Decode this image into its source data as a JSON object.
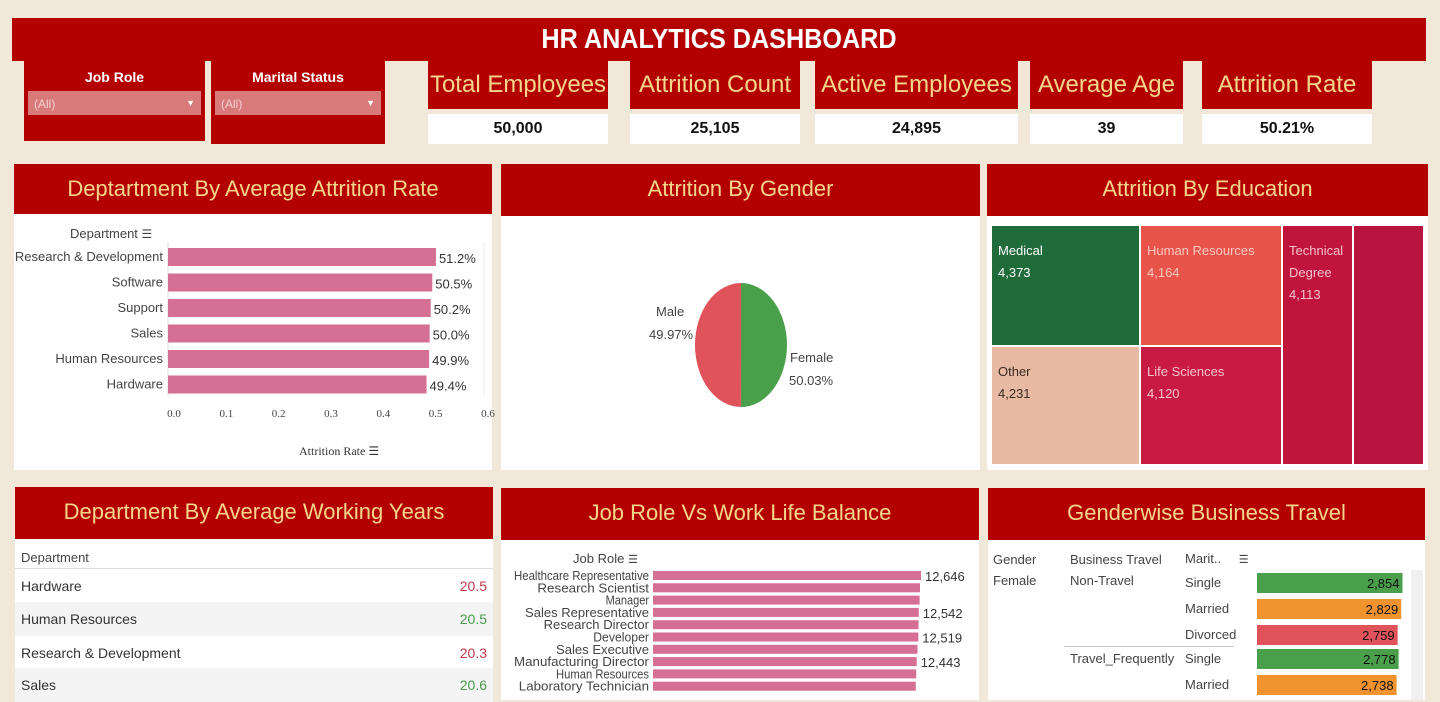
{
  "header": {
    "title": "HR ANALYTICS DASHBOARD"
  },
  "filters": [
    {
      "label": "Job Role",
      "value": "(All)"
    },
    {
      "label": "Marital Status",
      "value": "(All)"
    }
  ],
  "kpis": [
    {
      "label": "Total Employees",
      "value": "50,000"
    },
    {
      "label": "Attrition Count",
      "value": "25,105"
    },
    {
      "label": "Active Employees",
      "value": "24,895"
    },
    {
      "label": "Average Age",
      "value": "39"
    },
    {
      "label": "Attrition Rate",
      "value": "50.21%"
    }
  ],
  "dept_attrition": {
    "title": "Deptartment By Average Attrition Rate",
    "ylabel": "Department",
    "xlabel": "Attrition Rate",
    "ticks": [
      "0.0",
      "0.1",
      "0.2",
      "0.3",
      "0.4",
      "0.5",
      "0.6"
    ]
  },
  "gender_attrition": {
    "title": "Attrition By Gender",
    "male_label": "Male",
    "male_value": "49.97%",
    "female_label": "Female",
    "female_value": "50.03%"
  },
  "education": {
    "title": "Attrition By Education",
    "cells": [
      {
        "name": "Medical",
        "value": "4,373"
      },
      {
        "name": "Human Resources",
        "value": "4,164"
      },
      {
        "name": "Technical Degree",
        "value": "4,113"
      },
      {
        "name": "Other",
        "value": "4,231"
      },
      {
        "name": "Life Sciences",
        "value": "4,120"
      }
    ],
    "colors": [
      "#1f6b3a",
      "#e8544a",
      "#c0143c",
      "#e8b9a3",
      "#c91a45",
      "#b81440"
    ]
  },
  "working_years": {
    "title": "Department By Average Working Years",
    "header": "Department",
    "rows": [
      {
        "name": "Hardware",
        "value": "20.5",
        "color": "#c0394b"
      },
      {
        "name": "Human Resources",
        "value": "20.5",
        "color": "#4a9a4a"
      },
      {
        "name": "Research & Development",
        "value": "20.3",
        "color": "#c0394b"
      },
      {
        "name": "Sales",
        "value": "20.6",
        "color": "#4a9a4a"
      }
    ]
  },
  "jobrole_wlb": {
    "title": "Job Role Vs Work Life Balance",
    "ylabel": "Job Role"
  },
  "business_travel": {
    "title": "Genderwise Business Travel",
    "headers": [
      "Gender",
      "Business Travel",
      "Marit.."
    ],
    "gender": "Female",
    "groups": [
      {
        "travel": "Non-Travel",
        "rows": [
          {
            "status": "Single",
            "value": "2,854",
            "num": 2854,
            "color": "#4aa04a"
          },
          {
            "status": "Married",
            "value": "2,829",
            "num": 2829,
            "color": "#f0932e"
          },
          {
            "status": "Divorced",
            "value": "2,759",
            "num": 2759,
            "color": "#e0535a"
          }
        ]
      },
      {
        "travel": "Travel_Frequently",
        "rows": [
          {
            "status": "Single",
            "value": "2,778",
            "num": 2778,
            "color": "#4aa04a"
          },
          {
            "status": "Married",
            "value": "2,738",
            "num": 2738,
            "color": "#f0932e"
          }
        ]
      }
    ]
  },
  "chart_data": [
    {
      "type": "bar",
      "title": "Deptartment By Average Attrition Rate",
      "categories": [
        "Research & Development",
        "Software",
        "Support",
        "Sales",
        "Human Resources",
        "Hardware"
      ],
      "values": [
        0.512,
        0.505,
        0.502,
        0.5,
        0.499,
        0.494
      ],
      "labels": [
        "51.2%",
        "50.5%",
        "50.2%",
        "50.0%",
        "49.9%",
        "49.4%"
      ],
      "xlabel": "Attrition Rate",
      "ylabel": "Department",
      "xlim": [
        0,
        0.6
      ],
      "color": "#d56f94"
    },
    {
      "type": "pie",
      "title": "Attrition By Gender",
      "categories": [
        "Male",
        "Female"
      ],
      "values": [
        49.97,
        50.03
      ],
      "colors": [
        "#e0535a",
        "#4aa04a"
      ]
    },
    {
      "type": "bar",
      "title": "Job Role Vs Work Life Balance",
      "categories": [
        "Healthcare Representative",
        "Research Scientist",
        "Manager",
        "Sales Representative",
        "Research Director",
        "Developer",
        "Sales Executive",
        "Manufacturing Director",
        "Human Resources",
        "Laboratory Technician"
      ],
      "values": [
        12646,
        12600,
        12580,
        12542,
        12530,
        12519,
        12480,
        12443,
        12420,
        12400
      ],
      "labels": [
        "12,646",
        "",
        "",
        "12,542",
        "",
        "12,519",
        "",
        "12,443",
        "",
        ""
      ],
      "ylabel": "Job Role",
      "color": "#d56f94"
    }
  ]
}
